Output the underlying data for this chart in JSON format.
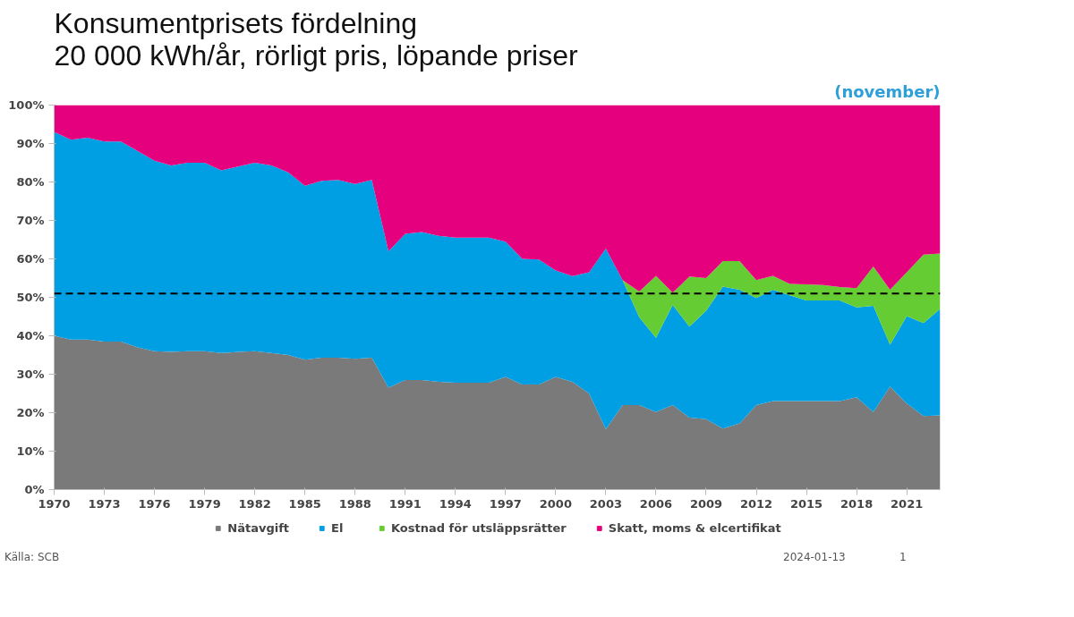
{
  "chart_data": {
    "type": "area",
    "stacked": true,
    "title": "Konsumentprisets fördelning\n20 000 kWh/år, rörligt pris, löpande priser",
    "subtitle": "(november)",
    "x": [
      1970,
      1971,
      1972,
      1973,
      1974,
      1975,
      1976,
      1977,
      1978,
      1979,
      1980,
      1981,
      1982,
      1983,
      1984,
      1985,
      1986,
      1987,
      1988,
      1989,
      1990,
      1991,
      1992,
      1993,
      1994,
      1995,
      1996,
      1997,
      1998,
      1999,
      2000,
      2001,
      2002,
      2003,
      2004,
      2005,
      2006,
      2007,
      2008,
      2009,
      2010,
      2011,
      2012,
      2013,
      2014,
      2015,
      2016,
      2017,
      2018,
      2019,
      2020,
      2021,
      2022,
      2023
    ],
    "series": [
      {
        "name": "Nätavgift",
        "color": "#7a7a7a",
        "values": [
          40,
          39,
          39,
          38.5,
          38.5,
          37,
          36,
          35.8,
          36,
          36,
          35.5,
          35.8,
          36,
          35.5,
          35,
          33.8,
          34.3,
          34.3,
          34,
          34.3,
          26.5,
          28.5,
          28.5,
          28,
          27.8,
          27.8,
          27.8,
          29.3,
          27.3,
          27.3,
          29.3,
          28,
          25,
          15.7,
          22,
          22,
          20.2,
          22,
          18.7,
          18.3,
          15.9,
          17.2,
          22,
          23,
          23,
          23,
          23,
          23,
          24,
          20.2,
          26.8,
          22.4,
          19.1,
          19.3
        ]
      },
      {
        "name": "El",
        "color": "#009fe3",
        "values": [
          53,
          52,
          52.5,
          52,
          52,
          51,
          49.5,
          48.5,
          49,
          49,
          47.5,
          48.2,
          49,
          48.8,
          47.5,
          45.2,
          46,
          46.2,
          45.5,
          46.2,
          35.5,
          38,
          38.5,
          38,
          37.7,
          37.7,
          37.7,
          35.2,
          32.7,
          32.5,
          27.7,
          27.5,
          31.5,
          47,
          32.5,
          22.8,
          19.3,
          26,
          23.7,
          28.2,
          36.9,
          34.8,
          27.8,
          29,
          27.5,
          26.2,
          26.2,
          26.2,
          23.4,
          27.6,
          10.9,
          22.7,
          24.2,
          27.7
        ]
      },
      {
        "name": "Kostnad för utsläppsrätter",
        "color": "#66cc33",
        "values": [
          0,
          0,
          0,
          0,
          0,
          0,
          0,
          0,
          0,
          0,
          0,
          0,
          0,
          0,
          0,
          0,
          0,
          0,
          0,
          0,
          0,
          0,
          0,
          0,
          0,
          0,
          0,
          0,
          0,
          0,
          0,
          0,
          0,
          0,
          0,
          6.7,
          16.1,
          3.2,
          13,
          8.5,
          6.6,
          7.4,
          4.7,
          3.6,
          3,
          4.2,
          4,
          3.5,
          5,
          10.2,
          14.3,
          11.4,
          17.8,
          14.4
        ]
      },
      {
        "name": "Skatt, moms & elcertifikat",
        "color": "#e5007e",
        "values": [
          7,
          9,
          8.5,
          9.5,
          9.5,
          12,
          14.5,
          15.7,
          15,
          15,
          17,
          16,
          15,
          15.7,
          17.5,
          21,
          19.7,
          19.5,
          20.5,
          19.5,
          38,
          33.5,
          33,
          34,
          34.5,
          34.5,
          34.5,
          35.5,
          40,
          40.2,
          43,
          44.5,
          43.5,
          37.3,
          45.5,
          48.5,
          44.4,
          48.8,
          44.6,
          45,
          40.6,
          40.6,
          45.5,
          44.4,
          46.5,
          46.6,
          46.8,
          47.3,
          47.6,
          42,
          48,
          43.5,
          38.9,
          38.6
        ]
      }
    ],
    "xlim": [
      1970,
      2023
    ],
    "xticks": [
      1970,
      1973,
      1976,
      1979,
      1982,
      1985,
      1988,
      1991,
      1994,
      1997,
      2000,
      2003,
      2006,
      2009,
      2012,
      2015,
      2018,
      2021
    ],
    "ylim": [
      0,
      100
    ],
    "yticks": [
      {
        "value": 0,
        "label": "0%"
      },
      {
        "value": 10,
        "label": "10%"
      },
      {
        "value": 20,
        "label": "20%"
      },
      {
        "value": 30,
        "label": "30%"
      },
      {
        "value": 40,
        "label": "40%"
      },
      {
        "value": 50,
        "label": "50%"
      },
      {
        "value": 60,
        "label": "60%"
      },
      {
        "value": 70,
        "label": "70%"
      },
      {
        "value": 80,
        "label": "80%"
      },
      {
        "value": 90,
        "label": "90%"
      },
      {
        "value": 100,
        "label": "100%"
      }
    ],
    "ref_lines": [
      {
        "axis": "y",
        "value": 51,
        "label": null,
        "color": "#000000",
        "line_style": "dashed"
      }
    ],
    "annotations": [
      "Källa: SCB",
      "2024-01-13",
      "1"
    ],
    "grid": false,
    "legend": "bottom"
  }
}
